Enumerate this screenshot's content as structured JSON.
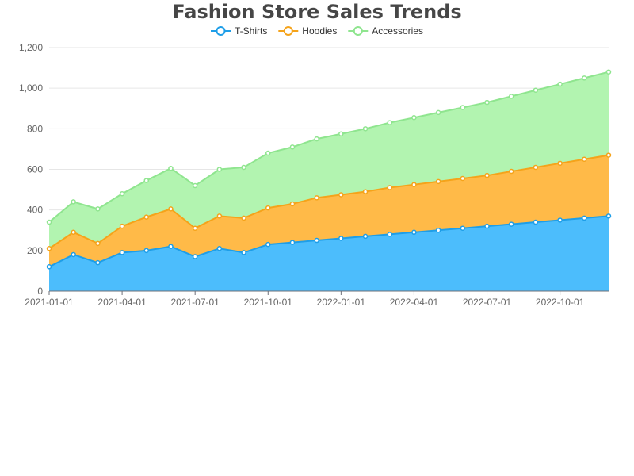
{
  "chart_data": {
    "type": "area",
    "stacked": true,
    "title": "Fashion Store Sales Trends",
    "xlabel": "",
    "ylabel": "",
    "ylim": [
      0,
      1200
    ],
    "y_ticks": [
      "0",
      "200",
      "400",
      "600",
      "800",
      "1,000",
      "1,200"
    ],
    "x_ticks": [
      "2021-01-01",
      "2021-04-01",
      "2021-07-01",
      "2021-10-01",
      "2022-01-01",
      "2022-04-01",
      "2022-07-01",
      "2022-10-01"
    ],
    "x": [
      "2021-01-01",
      "2021-02-01",
      "2021-03-01",
      "2021-04-01",
      "2021-05-01",
      "2021-06-01",
      "2021-07-01",
      "2021-08-01",
      "2021-09-01",
      "2021-10-01",
      "2021-11-01",
      "2021-12-01",
      "2022-01-01",
      "2022-02-01",
      "2022-03-01",
      "2022-04-01",
      "2022-05-01",
      "2022-06-01",
      "2022-07-01",
      "2022-08-01",
      "2022-09-01",
      "2022-10-01",
      "2022-11-01",
      "2022-12-01"
    ],
    "grid": true,
    "legend_position": "top-center",
    "series": [
      {
        "name": "T-Shirts",
        "color": "#1e9ee8",
        "fill": "#4cbdfc",
        "values": [
          120,
          180,
          140,
          190,
          200,
          220,
          170,
          210,
          190,
          230,
          240,
          250,
          260,
          270,
          280,
          290,
          300,
          310,
          320,
          330,
          340,
          350,
          360,
          370
        ]
      },
      {
        "name": "Hoodies",
        "color": "#f5a31a",
        "fill": "#ffba48",
        "values": [
          90,
          110,
          95,
          130,
          165,
          185,
          140,
          160,
          170,
          180,
          190,
          210,
          215,
          220,
          230,
          235,
          240,
          245,
          250,
          260,
          270,
          280,
          290,
          300
        ]
      },
      {
        "name": "Accessories",
        "color": "#8fe58f",
        "fill": "#b2f4b0",
        "values": [
          130,
          150,
          170,
          160,
          180,
          200,
          210,
          230,
          250,
          270,
          280,
          290,
          300,
          310,
          320,
          330,
          340,
          350,
          360,
          370,
          380,
          390,
          400,
          410
        ]
      }
    ]
  }
}
